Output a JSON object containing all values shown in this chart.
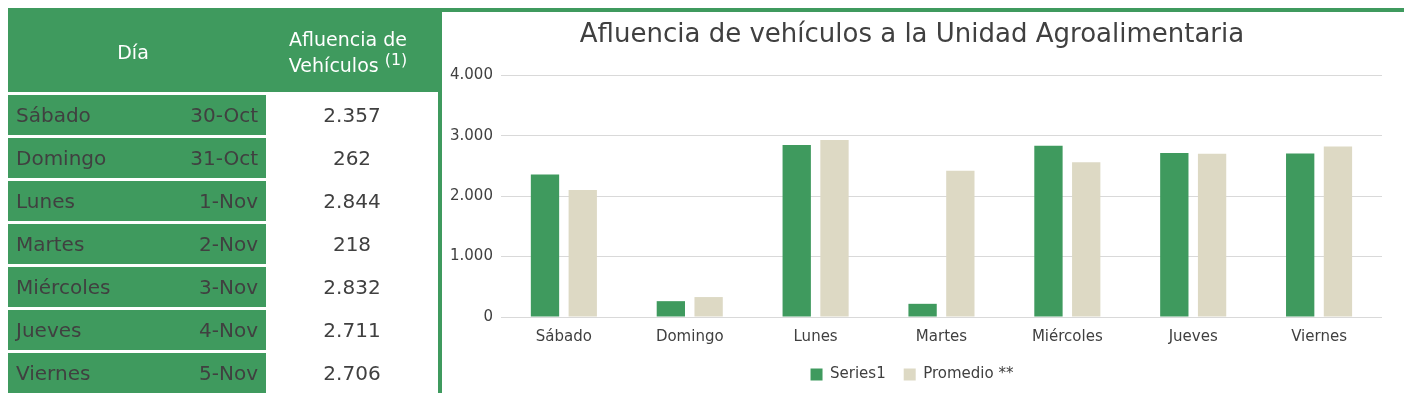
{
  "chart_data": [
    {
      "type": "other",
      "annotations": [
        "Día",
        "Afluencia de Vehículos $^{(1)}$",
        "Sábado",
        "30-Oct",
        "2.357",
        "Domingo",
        "31-Oct",
        "262",
        "Lunes",
        "1-Nov",
        "2.844",
        "Martes",
        "2-Nov",
        "218",
        "Miércoles",
        "3-Nov",
        "2.832",
        "Jueves",
        "4-Nov",
        "2.711",
        "Viernes",
        "5-Nov",
        "2.706"
      ]
    },
    {
      "type": "bar",
      "title": "Afluencia de vehículos a la Unidad Agroalimentaria",
      "categories": [
        "Sábado",
        "Domingo",
        "Lunes",
        "Martes",
        "Miércoles",
        "Jueves",
        "Viernes"
      ],
      "series": [
        {
          "name": "Series1",
          "color": "#3f9a5e",
          "values": [
            2357,
            262,
            2844,
            218,
            2832,
            2711,
            2706
          ]
        },
        {
          "name": "Promedio **",
          "color": "#ddd9c4",
          "values": [
            2100,
            330,
            2930,
            2420,
            2560,
            2700,
            2820
          ]
        }
      ],
      "ylim": [
        0,
        4000
      ],
      "yticks": [
        0,
        {
          "value": 1000,
          "label": "1.000"
        },
        {
          "value": 2000,
          "label": "2.000"
        },
        {
          "value": 3000,
          "label": "3.000"
        },
        {
          "value": 4000,
          "label": "4.000"
        }
      ],
      "grid": "y",
      "legend": "bottom"
    }
  ]
}
